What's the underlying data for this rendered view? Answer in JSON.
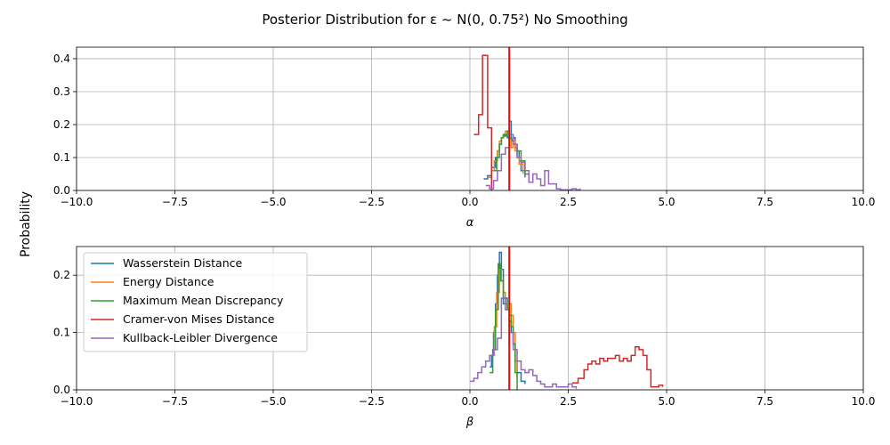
{
  "figure": {
    "title": "Posterior Distribution for ε ~ N(0, 0.75²) No Smoothing",
    "ylabel": "Probability",
    "true_value_color": "#ff0000"
  },
  "chart_data": [
    {
      "type": "line",
      "style": "step",
      "xlabel": "α",
      "xlim": [
        -10,
        10
      ],
      "ylim": [
        0,
        0.435
      ],
      "xticks": [
        -10,
        -7.5,
        -5,
        -2.5,
        0,
        2.5,
        5,
        7.5,
        10
      ],
      "xtick_labels": [
        "−10.0",
        "−7.5",
        "−5.0",
        "−2.5",
        "0.0",
        "2.5",
        "5.0",
        "7.5",
        "10.0"
      ],
      "yticks": [
        0,
        0.1,
        0.2,
        0.3,
        0.4
      ],
      "ytick_labels": [
        "0.0",
        "0.1",
        "0.2",
        "0.3",
        "0.4"
      ],
      "grid": true,
      "true_value": 1.0,
      "series": [
        {
          "name": "Wasserstein Distance",
          "color": "#1f77b4",
          "x": [
            0.35,
            0.45,
            0.55,
            0.65,
            0.7,
            0.75,
            0.8,
            0.85,
            0.9,
            0.95,
            1.0,
            1.05,
            1.1,
            1.15,
            1.2,
            1.25,
            1.3,
            1.4
          ],
          "y": [
            0.035,
            0.045,
            0.07,
            0.1,
            0.12,
            0.14,
            0.16,
            0.165,
            0.17,
            0.16,
            0.21,
            0.15,
            0.16,
            0.13,
            0.12,
            0.09,
            0.06,
            0.04
          ]
        },
        {
          "name": "Energy Distance",
          "color": "#ff7f0e",
          "x": [
            0.45,
            0.55,
            0.62,
            0.7,
            0.75,
            0.8,
            0.85,
            0.9,
            0.95,
            1.0,
            1.05,
            1.1,
            1.15,
            1.2,
            1.25,
            1.35
          ],
          "y": [
            0.04,
            0.06,
            0.09,
            0.12,
            0.15,
            0.16,
            0.17,
            0.18,
            0.17,
            0.16,
            0.13,
            0.15,
            0.12,
            0.1,
            0.08,
            0.05
          ]
        },
        {
          "name": "Maximum Mean Discrepancy",
          "color": "#2ca02c",
          "x": [
            0.6,
            0.68,
            0.75,
            0.8,
            0.85,
            0.9,
            0.95,
            1.0,
            1.05,
            1.1,
            1.2,
            1.3,
            1.4,
            1.5
          ],
          "y": [
            0.06,
            0.1,
            0.14,
            0.16,
            0.17,
            0.165,
            0.18,
            0.16,
            0.155,
            0.14,
            0.12,
            0.09,
            0.05,
            0.03
          ]
        },
        {
          "name": "Cramer-von Mises Distance",
          "color": "#d62728",
          "x": [
            0.1,
            0.22,
            0.32,
            0.45,
            0.55
          ],
          "y": [
            0.17,
            0.23,
            0.41,
            0.19,
            0.0
          ]
        },
        {
          "name": "Kullback-Leibler Divergence",
          "color": "#9467bd",
          "x": [
            0.4,
            0.5,
            0.6,
            0.7,
            0.8,
            0.9,
            1.0,
            1.1,
            1.2,
            1.3,
            1.4,
            1.5,
            1.6,
            1.7,
            1.8,
            1.9,
            2.0,
            2.1,
            2.2,
            2.3,
            2.4,
            2.5,
            2.6,
            2.7,
            2.8
          ],
          "y": [
            0.015,
            0.005,
            0.03,
            0.06,
            0.11,
            0.13,
            0.17,
            0.14,
            0.1,
            0.085,
            0.06,
            0.025,
            0.05,
            0.035,
            0.015,
            0.06,
            0.02,
            0.02,
            0.005,
            0.002,
            0.002,
            0.002,
            0.005,
            0.002,
            0.006
          ]
        }
      ]
    },
    {
      "type": "line",
      "style": "step",
      "xlabel": "β",
      "xlim": [
        -10,
        10
      ],
      "ylim": [
        0,
        0.25
      ],
      "xticks": [
        -10,
        -7.5,
        -5,
        -2.5,
        0,
        2.5,
        5,
        7.5,
        10
      ],
      "xtick_labels": [
        "−10.0",
        "−7.5",
        "−5.0",
        "−2.5",
        "0.0",
        "2.5",
        "5.0",
        "7.5",
        "10.0"
      ],
      "yticks": [
        0,
        0.1,
        0.2
      ],
      "ytick_labels": [
        "0.0",
        "0.1",
        "0.2"
      ],
      "grid": true,
      "true_value": 1.0,
      "legend_position": "top-left",
      "series": [
        {
          "name": "Wasserstein Distance",
          "color": "#1f77b4",
          "x": [
            0.5,
            0.55,
            0.6,
            0.65,
            0.7,
            0.75,
            0.8,
            0.85,
            0.9,
            0.95,
            1.0,
            1.05,
            1.1,
            1.15,
            1.2,
            1.3,
            1.4
          ],
          "y": [
            0.04,
            0.06,
            0.1,
            0.15,
            0.2,
            0.24,
            0.21,
            0.15,
            0.16,
            0.14,
            0.12,
            0.1,
            0.08,
            0.05,
            0.03,
            0.015,
            0.01
          ]
        },
        {
          "name": "Energy Distance",
          "color": "#ff7f0e",
          "x": [
            0.55,
            0.62,
            0.68,
            0.75,
            0.8,
            0.85,
            0.9,
            0.95,
            1.0,
            1.05,
            1.1,
            1.15,
            1.2
          ],
          "y": [
            0.06,
            0.11,
            0.17,
            0.21,
            0.19,
            0.17,
            0.15,
            0.14,
            0.15,
            0.13,
            0.1,
            0.05,
            0.02
          ]
        },
        {
          "name": "Maximum Mean Discrepancy",
          "color": "#2ca02c",
          "x": [
            0.5,
            0.58,
            0.65,
            0.72,
            0.78,
            0.85,
            0.9,
            0.95,
            1.0,
            1.05,
            1.1,
            1.15,
            1.2
          ],
          "y": [
            0.03,
            0.07,
            0.14,
            0.22,
            0.19,
            0.16,
            0.15,
            0.14,
            0.13,
            0.11,
            0.08,
            0.03,
            0.0
          ]
        },
        {
          "name": "Cramer-von Mises Distance",
          "color": "#d62728",
          "x": [
            2.6,
            2.75,
            2.9,
            3.0,
            3.1,
            3.2,
            3.3,
            3.4,
            3.5,
            3.6,
            3.7,
            3.8,
            3.9,
            4.0,
            4.1,
            4.2,
            4.3,
            4.4,
            4.5,
            4.6,
            4.7,
            4.8,
            4.9
          ],
          "y": [
            0.012,
            0.02,
            0.035,
            0.045,
            0.05,
            0.045,
            0.055,
            0.05,
            0.055,
            0.055,
            0.06,
            0.05,
            0.055,
            0.05,
            0.06,
            0.075,
            0.07,
            0.06,
            0.035,
            0.005,
            0.005,
            0.008,
            0.005
          ]
        },
        {
          "name": "Kullback-Leibler Divergence",
          "color": "#9467bd",
          "x": [
            0.0,
            0.1,
            0.2,
            0.3,
            0.4,
            0.5,
            0.6,
            0.7,
            0.8,
            0.9,
            1.0,
            1.1,
            1.2,
            1.3,
            1.4,
            1.5,
            1.6,
            1.7,
            1.8,
            1.9,
            2.0,
            2.1,
            2.2,
            2.3,
            2.4,
            2.5,
            2.6,
            2.7
          ],
          "y": [
            0.015,
            0.02,
            0.03,
            0.04,
            0.05,
            0.06,
            0.07,
            0.09,
            0.16,
            0.14,
            0.1,
            0.07,
            0.05,
            0.035,
            0.03,
            0.035,
            0.025,
            0.015,
            0.01,
            0.005,
            0.005,
            0.01,
            0.005,
            0.005,
            0.005,
            0.01,
            0.005,
            0.002
          ]
        }
      ]
    }
  ]
}
